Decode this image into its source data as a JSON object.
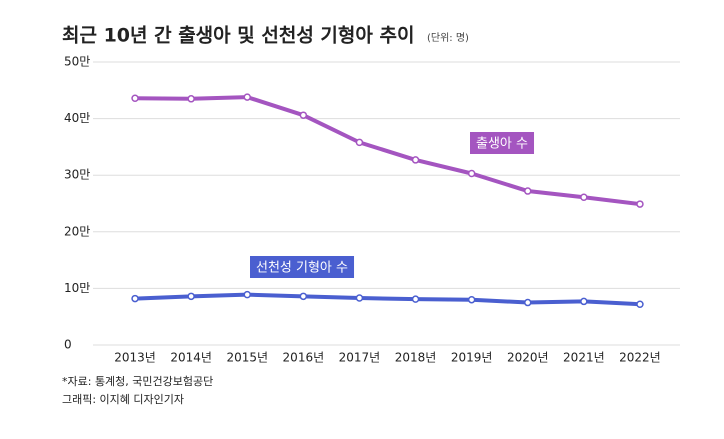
{
  "chart_data": {
    "type": "line",
    "title": "최근 10년 간 출생아 및 선천성 기형아 추이",
    "subtitle": "(단위: 명)",
    "categories": [
      "2013년",
      "2014년",
      "2015년",
      "2016년",
      "2017년",
      "2018년",
      "2019년",
      "2020년",
      "2021년",
      "2022년"
    ],
    "series": [
      {
        "name": "출생아 수",
        "color": "#a455c0",
        "values": [
          43.6,
          43.5,
          43.8,
          40.6,
          35.8,
          32.7,
          30.3,
          27.2,
          26.1,
          24.9
        ]
      },
      {
        "name": "선천성 기형아 수",
        "color": "#4a5fd0",
        "values": [
          8.2,
          8.6,
          8.9,
          8.6,
          8.3,
          8.1,
          8.0,
          7.5,
          7.7,
          7.2
        ]
      }
    ],
    "ylim": [
      0,
      50
    ],
    "yticks": [
      0,
      {
        "value": 10,
        "label": "10만"
      },
      {
        "value": 20,
        "label": "20만"
      },
      {
        "value": 30,
        "label": "30만"
      },
      {
        "value": 40,
        "label": "40만"
      },
      {
        "value": 50,
        "label": "50만"
      }
    ],
    "grid": true,
    "source": "*자료: 통계청, 국민건강보험공단",
    "credit": "그래픽: 이지혜 디자인기자"
  }
}
